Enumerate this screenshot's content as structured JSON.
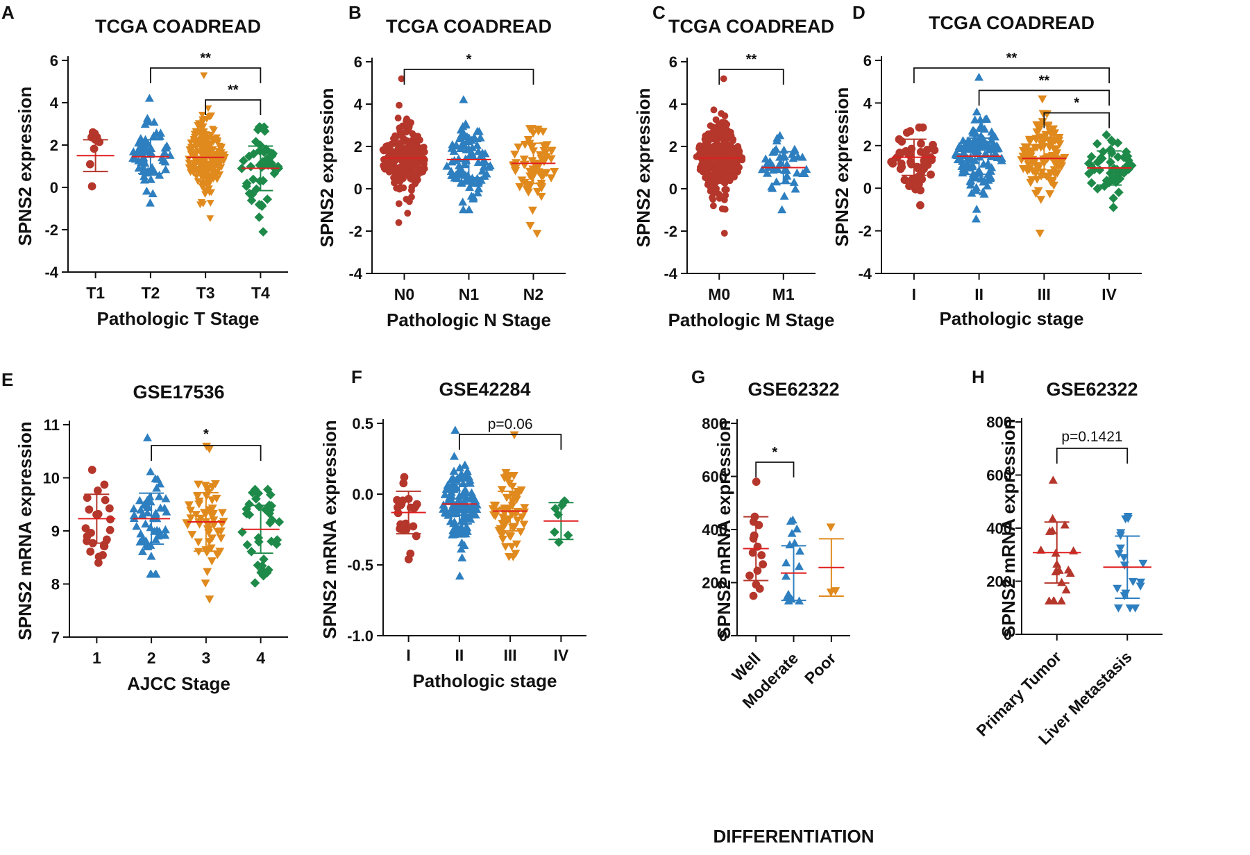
{
  "figure": {
    "panel_count": 8
  },
  "chart_data": [
    {
      "panel": "A",
      "type": "scatter",
      "subtype": "dot-plot with mean ± SD",
      "title": "TCGA COADREAD",
      "xlabel": "Pathologic T Stage",
      "ylabel": "SPNS2 expression",
      "ylim": [
        -4,
        6
      ],
      "yticks": [
        -4,
        -2,
        0,
        2,
        4,
        6
      ],
      "categories": [
        "T1",
        "T2",
        "T3",
        "T4"
      ],
      "colors": [
        "#b5362b",
        "#2e7fbf",
        "#e08a1e",
        "#1e8a4a"
      ],
      "markers": [
        "circle",
        "triangle-up",
        "triangle-down",
        "diamond"
      ],
      "n": [
        9,
        60,
        240,
        45
      ],
      "means": [
        1.5,
        1.45,
        1.42,
        0.9
      ],
      "sd": [
        0.75,
        0.8,
        0.85,
        1.05
      ],
      "ranges": [
        [
          0.05,
          2.6
        ],
        [
          -0.75,
          4.2
        ],
        [
          -1.45,
          5.3
        ],
        [
          -2.1,
          2.85
        ]
      ],
      "significance": [
        {
          "from": 1,
          "to": 3,
          "label": "**"
        },
        {
          "from": 2,
          "to": 3,
          "label": "**"
        }
      ]
    },
    {
      "panel": "B",
      "type": "scatter",
      "subtype": "dot-plot with mean ± SD",
      "title": "TCGA COADREAD",
      "xlabel": "Pathologic N Stage",
      "ylabel": "SPNS2 expression",
      "ylim": [
        -4,
        6
      ],
      "yticks": [
        -4,
        -2,
        0,
        2,
        4,
        6
      ],
      "categories": [
        "N0",
        "N1",
        "N2"
      ],
      "colors": [
        "#b5362b",
        "#2e7fbf",
        "#e08a1e"
      ],
      "markers": [
        "circle",
        "triangle-up",
        "triangle-down"
      ],
      "n": [
        200,
        90,
        70
      ],
      "means": [
        1.45,
        1.38,
        1.2
      ],
      "sd": [
        0.85,
        0.85,
        0.95
      ],
      "ranges": [
        [
          -1.6,
          5.2
        ],
        [
          -1.0,
          4.2
        ],
        [
          -2.1,
          2.85
        ]
      ],
      "significance": [
        {
          "from": 0,
          "to": 2,
          "label": "*"
        }
      ]
    },
    {
      "panel": "C",
      "type": "scatter",
      "subtype": "dot-plot with mean ± SD",
      "title": "TCGA COADREAD",
      "xlabel": "Pathologic M Stage",
      "ylabel": "SPNS2 expression",
      "ylim": [
        -4,
        6
      ],
      "yticks": [
        -4,
        -2,
        0,
        2,
        4,
        6
      ],
      "categories": [
        "M0",
        "M1"
      ],
      "colors": [
        "#b5362b",
        "#2e7fbf"
      ],
      "markers": [
        "circle",
        "triangle-up"
      ],
      "n": [
        280,
        45
      ],
      "means": [
        1.45,
        1.0
      ],
      "sd": [
        0.85,
        0.75
      ],
      "ranges": [
        [
          -2.1,
          5.2
        ],
        [
          -1.0,
          2.5
        ]
      ],
      "significance": [
        {
          "from": 0,
          "to": 1,
          "label": "**"
        }
      ]
    },
    {
      "panel": "D",
      "type": "scatter",
      "subtype": "dot-plot with mean ± SD",
      "title": "TCGA COADREAD",
      "xlabel": "Pathologic stage",
      "ylabel": "SPNS2 expression",
      "ylim": [
        -4,
        6
      ],
      "yticks": [
        -4,
        -2,
        0,
        2,
        4,
        6
      ],
      "categories": [
        "I",
        "II",
        "III",
        "IV"
      ],
      "colors": [
        "#b5362b",
        "#2e7fbf",
        "#e08a1e",
        "#1e8a4a"
      ],
      "markers": [
        "circle",
        "triangle-up",
        "triangle-down",
        "diamond"
      ],
      "n": [
        50,
        130,
        110,
        50
      ],
      "means": [
        1.45,
        1.5,
        1.4,
        0.95
      ],
      "sd": [
        0.85,
        0.85,
        0.9,
        0.8
      ],
      "ranges": [
        [
          -0.8,
          2.85
        ],
        [
          -1.45,
          5.2
        ],
        [
          -2.1,
          4.2
        ],
        [
          -0.9,
          2.5
        ]
      ],
      "significance": [
        {
          "from": 0,
          "to": 3,
          "label": "**"
        },
        {
          "from": 1,
          "to": 3,
          "label": "**"
        },
        {
          "from": 2,
          "to": 3,
          "label": "*"
        }
      ]
    },
    {
      "panel": "E",
      "type": "scatter",
      "subtype": "dot-plot with mean ± SD",
      "title": "GSE17536",
      "xlabel": "AJCC Stage",
      "ylabel": "SPNS2 mRNA expression",
      "ylim": [
        7,
        11
      ],
      "yticks": [
        7,
        8,
        9,
        10,
        11
      ],
      "categories": [
        "1",
        "2",
        "3",
        "4"
      ],
      "colors": [
        "#b5362b",
        "#2e7fbf",
        "#e08a1e",
        "#1e8a4a"
      ],
      "markers": [
        "circle",
        "triangle-up",
        "triangle-down",
        "diamond"
      ],
      "n": [
        24,
        57,
        57,
        38
      ],
      "means": [
        9.23,
        9.23,
        9.17,
        9.03
      ],
      "sd": [
        0.46,
        0.48,
        0.55,
        0.45
      ],
      "ranges": [
        [
          8.4,
          10.15
        ],
        [
          8.18,
          10.75
        ],
        [
          7.72,
          10.6
        ],
        [
          8.02,
          9.78
        ]
      ],
      "significance": [
        {
          "from": 1,
          "to": 3,
          "label": "*"
        }
      ]
    },
    {
      "panel": "F",
      "type": "scatter",
      "subtype": "dot-plot with mean ± SD",
      "title": "GSE42284",
      "xlabel": "Pathologic stage",
      "ylabel": "SPNS2 mRNA expression",
      "ylim": [
        -1.0,
        0.5
      ],
      "yticks": [
        -1.0,
        -0.5,
        0.0,
        0.5
      ],
      "ytick_labels": [
        "-1.0",
        "-0.5",
        "0.0",
        "0.5"
      ],
      "categories": [
        "I",
        "II",
        "III",
        "IV"
      ],
      "colors": [
        "#b5362b",
        "#2e7fbf",
        "#e08a1e",
        "#1e8a4a"
      ],
      "markers": [
        "circle",
        "triangle-up",
        "triangle-down",
        "diamond"
      ],
      "n": [
        24,
        120,
        62,
        8
      ],
      "means": [
        -0.13,
        -0.07,
        -0.12,
        -0.19
      ],
      "sd": [
        0.15,
        0.14,
        0.14,
        0.13
      ],
      "ranges": [
        [
          -0.46,
          0.12
        ],
        [
          -0.58,
          0.45
        ],
        [
          -0.44,
          0.42
        ],
        [
          -0.34,
          -0.05
        ]
      ],
      "significance": [
        {
          "from": 1,
          "to": 3,
          "label": "p=0.06"
        }
      ]
    },
    {
      "panel": "G",
      "type": "scatter",
      "subtype": "dot-plot with mean ± SD",
      "title": "GSE62322",
      "xlabel": "DIFFERENTIATION",
      "ylabel": "SPNS2 mRNA expression",
      "ylim": [
        0,
        800
      ],
      "yticks": [
        0,
        200,
        400,
        600,
        800
      ],
      "categories": [
        "Well",
        "Moderate",
        "Poor"
      ],
      "x_tick_rotation": -45,
      "colors": [
        "#b5362b",
        "#2e7fbf",
        "#e08a1e"
      ],
      "markers": [
        "circle",
        "triangle-up",
        "triangle-down"
      ],
      "n": [
        16,
        15,
        3
      ],
      "means": [
        328,
        236,
        257
      ],
      "sd": [
        120,
        103,
        108
      ],
      "ranges": [
        [
          150,
          580
        ],
        [
          130,
          435
        ],
        [
          165,
          410
        ]
      ],
      "significance": [
        {
          "from": 0,
          "to": 1,
          "label": "*"
        }
      ]
    },
    {
      "panel": "H",
      "type": "scatter",
      "subtype": "dot-plot with mean ± SD",
      "title": "GSE62322",
      "xlabel": "",
      "ylabel": "SPNS2 mRNA expression",
      "ylim": [
        0,
        800
      ],
      "yticks": [
        0,
        200,
        400,
        600,
        800
      ],
      "categories": [
        "Primary Tumor",
        "Liver Metastasis"
      ],
      "x_tick_rotation": -45,
      "colors": [
        "#b5362b",
        "#2e7fbf"
      ],
      "markers": [
        "triangle-up",
        "triangle-down"
      ],
      "n": [
        19,
        19
      ],
      "means": [
        308,
        253
      ],
      "sd": [
        115,
        117
      ],
      "ranges": [
        [
          125,
          580
        ],
        [
          100,
          445
        ]
      ],
      "significance": [
        {
          "from": 0,
          "to": 1,
          "label": "p=0.1421"
        }
      ]
    }
  ]
}
